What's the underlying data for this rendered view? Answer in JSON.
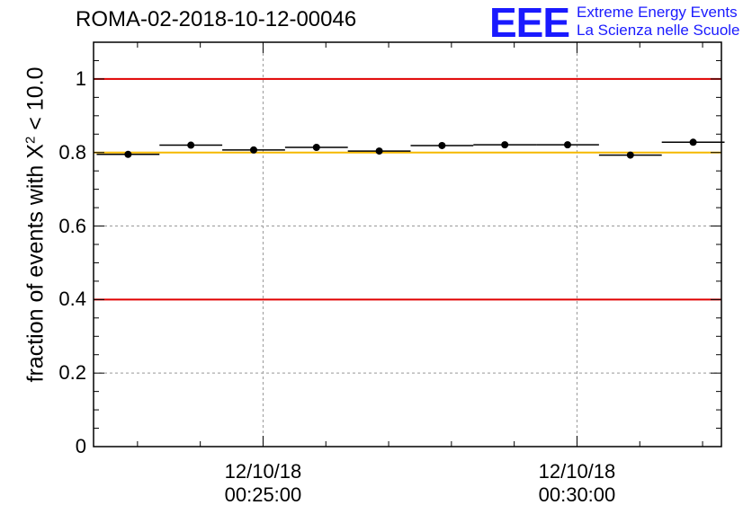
{
  "chart_data": {
    "type": "scatter",
    "title": "ROMA-02-2018-10-12-00046",
    "ylabel_prefix": "fraction of events with",
    "ylabel_symbol": "X",
    "ylabel_power": "2",
    "ylabel_suffix": "< 10.0",
    "ylim": [
      0,
      1.1
    ],
    "y_ticks": [
      {
        "value": 0,
        "label": "0"
      },
      {
        "value": 0.2,
        "label": "0.2"
      },
      {
        "value": 0.4,
        "label": "0.4"
      },
      {
        "value": 0.6,
        "label": "0.6"
      },
      {
        "value": 0.8,
        "label": "0.8"
      },
      {
        "value": 1,
        "label": "1"
      }
    ],
    "xlim_minutes": [
      22.3,
      32.3
    ],
    "x_ticks": [
      {
        "minute": 25,
        "date": "12/10/18",
        "time": "00:25:00"
      },
      {
        "minute": 30,
        "date": "12/10/18",
        "time": "00:30:00"
      }
    ],
    "points": [
      {
        "start": 22.35,
        "end": 23.35,
        "y": 0.795
      },
      {
        "start": 23.35,
        "end": 24.35,
        "y": 0.82
      },
      {
        "start": 24.35,
        "end": 25.35,
        "y": 0.807
      },
      {
        "start": 25.35,
        "end": 26.35,
        "y": 0.814
      },
      {
        "start": 26.35,
        "end": 27.35,
        "y": 0.804
      },
      {
        "start": 27.35,
        "end": 28.35,
        "y": 0.819
      },
      {
        "start": 28.35,
        "end": 29.35,
        "y": 0.821
      },
      {
        "start": 29.35,
        "end": 30.35,
        "y": 0.821
      },
      {
        "start": 30.35,
        "end": 31.35,
        "y": 0.793
      },
      {
        "start": 31.35,
        "end": 32.35,
        "y": 0.828
      }
    ],
    "reference_lines": [
      {
        "y": 1.0,
        "color": "#e00000"
      },
      {
        "y": 0.4,
        "color": "#e00000"
      },
      {
        "y": 0.8,
        "color": "#f5b800"
      }
    ],
    "grid": true
  },
  "logo": {
    "mark": "EEE",
    "line1": "Extreme Energy Events",
    "line2": "La Scienza nelle Scuole",
    "color": "#1a1aff"
  }
}
